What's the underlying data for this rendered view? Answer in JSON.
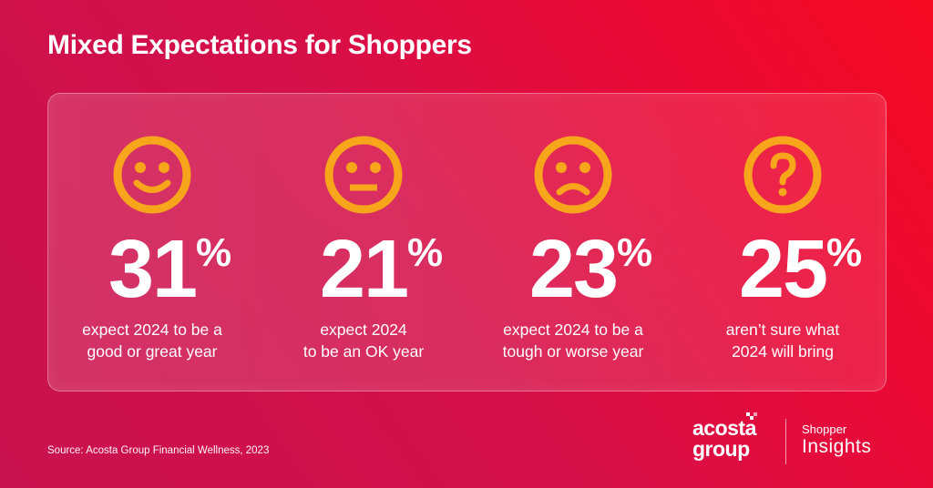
{
  "title": "Mixed Expectations for Shoppers",
  "colors": {
    "icon": "#f7a51a",
    "background_start": "#c8124f",
    "background_end": "#f50a22"
  },
  "stats": [
    {
      "icon": "smiley-happy-icon",
      "value": "31",
      "unit": "%",
      "line1": "expect 2024 to be a",
      "line2": "good or great year"
    },
    {
      "icon": "smiley-neutral-icon",
      "value": "21",
      "unit": "%",
      "line1": "expect 2024",
      "line2": "to be an OK year"
    },
    {
      "icon": "smiley-sad-icon",
      "value": "23",
      "unit": "%",
      "line1": "expect 2024 to be a",
      "line2": "tough or worse year"
    },
    {
      "icon": "question-mark-icon",
      "value": "25",
      "unit": "%",
      "line1": "aren’t sure what",
      "line2": "2024 will bring"
    }
  ],
  "source": "Source: Acosta Group Financial Wellness, 2023",
  "logo": {
    "line1": "acosta",
    "line2": "group"
  },
  "brand": {
    "small": "Shopper",
    "big": "Insights"
  }
}
